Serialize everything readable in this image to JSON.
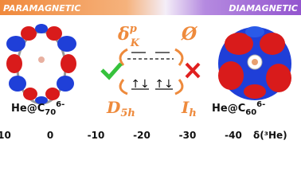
{
  "header": {
    "left": "PARAMAGNETIC",
    "right": "DIAMAGNETIC"
  },
  "molecules": [
    {
      "base": "He@C",
      "subscript": "70",
      "superscript": "6-"
    },
    {
      "base": "He@C",
      "subscript": "60",
      "superscript": "6-"
    }
  ],
  "center": {
    "shift_symbol": {
      "base": "δ",
      "superscript": "p",
      "subscript": "K"
    },
    "empty_symbol": "Ø",
    "spin_pairs": [
      "↑↓",
      "↑↓"
    ],
    "symmetries": [
      {
        "base": "D",
        "subscript": "5h"
      },
      {
        "base": "I",
        "subscript": "h"
      }
    ]
  },
  "axis": {
    "ticks": [
      10,
      0,
      -10,
      -20,
      -30,
      -40
    ],
    "label": "δ(³He)"
  }
}
